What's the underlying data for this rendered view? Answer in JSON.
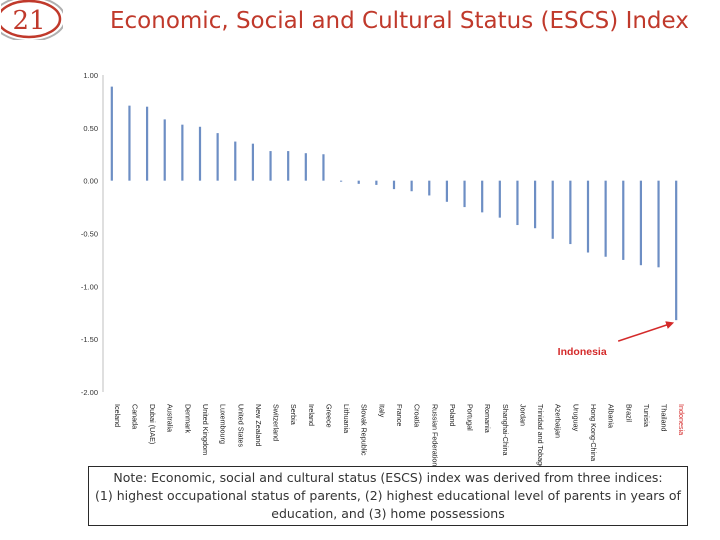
{
  "slide": {
    "number": "21",
    "title": "Economic, Social and Cultural Status (ESCS) Index"
  },
  "colors": {
    "accent_red": "#c0392b",
    "bar_blue": "#6d8ec4",
    "highlight_red": "#d42a2a"
  },
  "note": {
    "line1": "Note: Economic, social and cultural status (ESCS) index was derived from three indices:",
    "line2": "(1)  highest occupational status of parents, (2) highest educational level of parents in years of",
    "line3": "education, and (3) home possessions"
  },
  "chart_data": {
    "type": "bar",
    "title": "",
    "ylim": [
      -2.0,
      1.0
    ],
    "yticks": [
      {
        "value": 1.0,
        "label": "1.00"
      },
      {
        "value": 0.5,
        "label": "0.50"
      },
      {
        "value": 0.0,
        "label": "0.00"
      },
      {
        "value": -0.5,
        "label": "-0.50"
      },
      {
        "value": -1.0,
        "label": "-1.00"
      },
      {
        "value": -1.5,
        "label": "-1.50"
      },
      {
        "value": -2.0,
        "label": "-2.00"
      }
    ],
    "grid": false,
    "highlight_category": "Indonesia",
    "annotation": {
      "text": "Indonesia",
      "target": "Indonesia"
    },
    "categories": [
      "Iceland",
      "Canada",
      "Dubai (UAE)",
      "Australia",
      "Denmark",
      "United Kingdom",
      "Luxembourg",
      "United States",
      "New Zealand",
      "Switzerland",
      "Serbia",
      "Ireland",
      "Greece",
      "Lithuania",
      "Slovak Republic",
      "Italy",
      "France",
      "Croatia",
      "Russian Federation",
      "Poland",
      "Portugal",
      "Romania",
      "Shanghai-China",
      "Jordan",
      "Trinidad and Tobago",
      "Azerbaijan",
      "Uruguay",
      "Hong Kong-China",
      "Albania",
      "Brazil",
      "Tunisia",
      "Thailand",
      "Indonesia"
    ],
    "values": [
      0.89,
      0.71,
      0.7,
      0.58,
      0.53,
      0.51,
      0.45,
      0.37,
      0.35,
      0.28,
      0.28,
      0.26,
      0.25,
      0.0,
      -0.03,
      -0.04,
      -0.08,
      -0.1,
      -0.14,
      -0.2,
      -0.25,
      -0.3,
      -0.35,
      -0.42,
      -0.45,
      -0.55,
      -0.6,
      -0.68,
      -0.72,
      -0.75,
      -0.8,
      -0.82,
      -1.32
    ]
  }
}
